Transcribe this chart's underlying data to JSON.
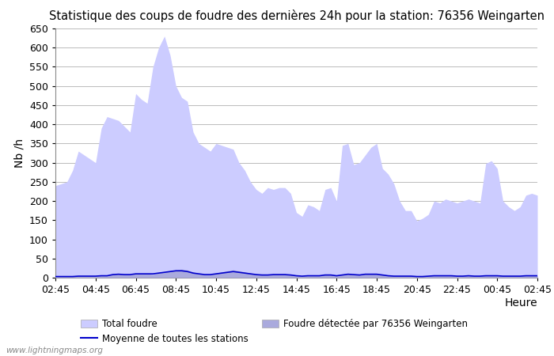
{
  "title": "Statistique des coups de foudre des dernières 24h pour la station: 76356 Weingarten",
  "ylabel": "Nb /h",
  "watermark": "www.lightningmaps.org",
  "ylim": [
    0,
    650
  ],
  "yticks": [
    0,
    50,
    100,
    150,
    200,
    250,
    300,
    350,
    400,
    450,
    500,
    550,
    600,
    650
  ],
  "xtick_labels": [
    "02:45",
    "04:45",
    "06:45",
    "08:45",
    "10:45",
    "12:45",
    "14:45",
    "16:45",
    "18:45",
    "20:45",
    "22:45",
    "00:45",
    "02:45"
  ],
  "legend_total": "Total foudre",
  "legend_detected": "Foudre détectée par 76356 Weingarten",
  "legend_moyenne": "Moyenne de toutes les stations",
  "fill_total_color": "#ccccff",
  "fill_detected_color": "#aaaadd",
  "line_moyenne_color": "#0000cc",
  "bg_color": "#ffffff",
  "grid_color": "#bbbbbb",
  "total_foudre": [
    240,
    245,
    250,
    280,
    330,
    320,
    310,
    300,
    390,
    420,
    415,
    410,
    395,
    380,
    480,
    465,
    455,
    550,
    600,
    630,
    580,
    500,
    470,
    460,
    380,
    350,
    340,
    330,
    350,
    345,
    340,
    335,
    300,
    280,
    250,
    230,
    220,
    235,
    230,
    235,
    235,
    220,
    170,
    160,
    190,
    185,
    175,
    230,
    235,
    200,
    345,
    350,
    295,
    300,
    320,
    340,
    350,
    285,
    270,
    245,
    200,
    175,
    175,
    148,
    155,
    165,
    200,
    195,
    205,
    200,
    195,
    200,
    205,
    200,
    195,
    298,
    305,
    285,
    200,
    185,
    175,
    185,
    215,
    220,
    215
  ],
  "detected_foudre": [
    5,
    5,
    5,
    5,
    5,
    5,
    5,
    5,
    5,
    5,
    10,
    10,
    8,
    8,
    10,
    10,
    10,
    8,
    12,
    15,
    18,
    20,
    22,
    20,
    15,
    10,
    8,
    8,
    12,
    15,
    18,
    20,
    18,
    15,
    12,
    10,
    8,
    8,
    10,
    10,
    10,
    8,
    5,
    5,
    5,
    5,
    5,
    8,
    8,
    5,
    8,
    10,
    8,
    8,
    10,
    10,
    10,
    8,
    5,
    5,
    5,
    5,
    5,
    3,
    3,
    5,
    5,
    5,
    5,
    5,
    5,
    5,
    5,
    5,
    5,
    5,
    5,
    5,
    5,
    5,
    5,
    5,
    5,
    5,
    5
  ],
  "moyenne": [
    3,
    3,
    3,
    3,
    4,
    4,
    4,
    4,
    5,
    5,
    8,
    9,
    8,
    8,
    10,
    10,
    10,
    10,
    12,
    14,
    16,
    18,
    18,
    16,
    12,
    10,
    8,
    8,
    10,
    12,
    14,
    16,
    14,
    12,
    10,
    8,
    7,
    7,
    8,
    8,
    8,
    7,
    5,
    4,
    5,
    5,
    5,
    7,
    7,
    5,
    7,
    9,
    8,
    7,
    9,
    9,
    9,
    7,
    5,
    4,
    4,
    4,
    4,
    3,
    3,
    4,
    5,
    5,
    5,
    5,
    4,
    4,
    5,
    4,
    4,
    5,
    5,
    5,
    4,
    4,
    4,
    4,
    5,
    5,
    5
  ]
}
